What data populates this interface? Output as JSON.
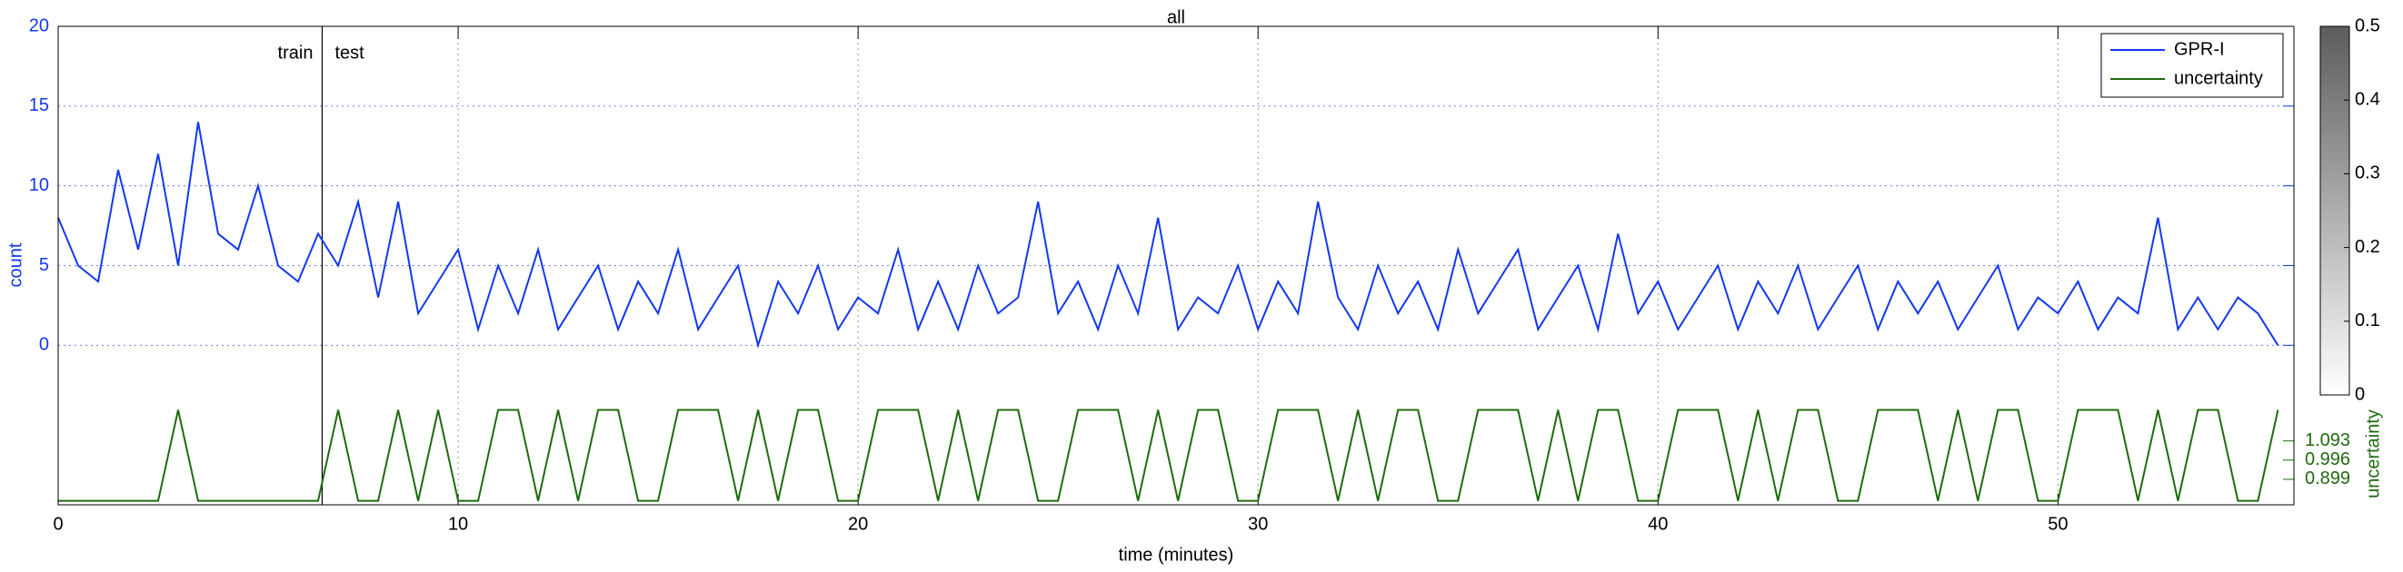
{
  "chart_data": {
    "type": "line",
    "title": "all",
    "xlabel": "time (minutes)",
    "ylabel": "count",
    "y2label": "uncertainty",
    "annotations": [
      "train",
      "test"
    ],
    "split": 6.6,
    "xlim": [
      0,
      55.9
    ],
    "xticks": [
      0,
      10,
      20,
      30,
      40,
      50
    ],
    "ylim": [
      -10,
      20
    ],
    "yticks": [
      0,
      5,
      10,
      15,
      20
    ],
    "y2lim": [
      0.77,
      3.19
    ],
    "y2ticks": [
      0.899,
      0.996,
      1.093
    ],
    "grid": true,
    "legend": "upper right",
    "colorbar": {
      "lim": [
        0,
        0.5
      ],
      "ticks": [
        0,
        0.1,
        0.2,
        0.3,
        0.4,
        0.5
      ]
    },
    "x": [
      0,
      0.5,
      1,
      1.5,
      2,
      2.5,
      3,
      3.5,
      4,
      4.5,
      5,
      5.5,
      6,
      6.5,
      7,
      7.5,
      8,
      8.5,
      9,
      9.5,
      10,
      10.5,
      11,
      11.5,
      12,
      12.5,
      13,
      13.5,
      14,
      14.5,
      15,
      15.5,
      16,
      16.5,
      17,
      17.5,
      18,
      18.5,
      19,
      19.5,
      20,
      20.5,
      21,
      21.5,
      22,
      22.5,
      23,
      23.5,
      24,
      24.5,
      25,
      25.5,
      26,
      26.5,
      27,
      27.5,
      28,
      28.5,
      29,
      29.5,
      30,
      30.5,
      31,
      31.5,
      32,
      32.5,
      33,
      33.5,
      34,
      34.5,
      35,
      35.5,
      36,
      36.5,
      37,
      37.5,
      38,
      38.5,
      39,
      39.5,
      40,
      40.5,
      41,
      41.5,
      42,
      42.5,
      43,
      43.5,
      44,
      44.5,
      45,
      45.5,
      46,
      46.5,
      47,
      47.5,
      48,
      48.5,
      49,
      49.5,
      50,
      50.5,
      51,
      51.5,
      52,
      52.5,
      53,
      53.5,
      54,
      54.5,
      55,
      55.5
    ],
    "series": [
      {
        "name": "GPR-I",
        "color": "#1438f0",
        "values": [
          8,
          5,
          4,
          11,
          6,
          12,
          5,
          14,
          7,
          6,
          10,
          5,
          4,
          7,
          5,
          9,
          3,
          9,
          2,
          4,
          6,
          1,
          5,
          2,
          6,
          1,
          3,
          5,
          1,
          4,
          2,
          6,
          1,
          3,
          5,
          0,
          4,
          2,
          5,
          1,
          3,
          2,
          6,
          1,
          4,
          1,
          5,
          2,
          3,
          9,
          2,
          4,
          1,
          5,
          2,
          8,
          1,
          3,
          2,
          5,
          1,
          4,
          2,
          9,
          3,
          1,
          5,
          2,
          4,
          1,
          6,
          2,
          4,
          6,
          1,
          3,
          5,
          1,
          7,
          2,
          4,
          1,
          3,
          5,
          1,
          4,
          2,
          5,
          1,
          3,
          5,
          1,
          4,
          2,
          4,
          1,
          3,
          5,
          1,
          3,
          2,
          4,
          1,
          3,
          2,
          8,
          1,
          3,
          1,
          3,
          2,
          0
        ]
      },
      {
        "name": "uncertainty",
        "color": "#1f6b10",
        "axis": "y2",
        "values": [
          0.79,
          0.79,
          0.79,
          0.79,
          0.79,
          0.79,
          1.25,
          0.79,
          0.79,
          0.79,
          0.79,
          0.79,
          0.79,
          0.79,
          1.25,
          0.79,
          0.79,
          1.25,
          0.79,
          1.25,
          0.79,
          0.79,
          1.25,
          1.25,
          0.79,
          1.25,
          0.79,
          1.25,
          1.25,
          0.79,
          0.79,
          1.25,
          1.25,
          1.25,
          0.79,
          1.25,
          0.79,
          1.25,
          1.25,
          0.79,
          0.79,
          1.25,
          1.25,
          1.25,
          0.79,
          1.25,
          0.79,
          1.25,
          1.25,
          0.79,
          0.79,
          1.25,
          1.25,
          1.25,
          0.79,
          1.25,
          0.79,
          1.25,
          1.25,
          0.79,
          0.79,
          1.25,
          1.25,
          1.25,
          0.79,
          1.25,
          0.79,
          1.25,
          1.25,
          0.79,
          0.79,
          1.25,
          1.25,
          1.25,
          0.79,
          1.25,
          0.79,
          1.25,
          1.25,
          0.79,
          0.79,
          1.25,
          1.25,
          1.25,
          0.79,
          1.25,
          0.79,
          1.25,
          1.25,
          0.79,
          0.79,
          1.25,
          1.25,
          1.25,
          0.79,
          1.25,
          0.79,
          1.25,
          1.25,
          0.79,
          0.79,
          1.25,
          1.25,
          1.25,
          0.79,
          1.25,
          0.79,
          1.25,
          1.25,
          0.79,
          0.79,
          1.25
        ]
      }
    ]
  }
}
